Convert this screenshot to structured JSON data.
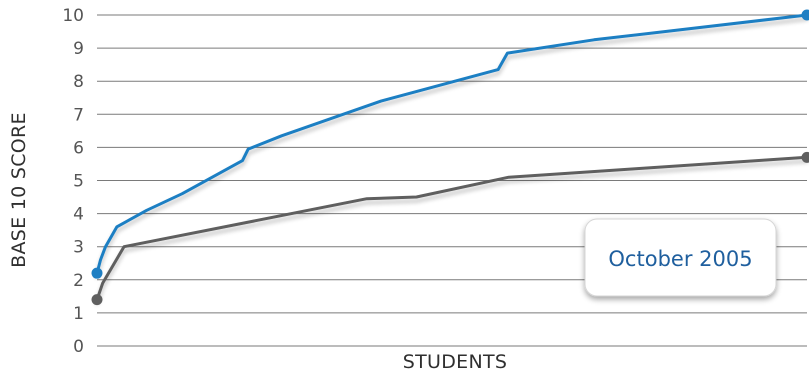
{
  "chart_data": {
    "type": "line",
    "title": "",
    "xlabel": "STUDENTS",
    "ylabel": "BASE 10 SCORE",
    "xlim": [
      0,
      100
    ],
    "ylim": [
      0,
      10
    ],
    "yticks": [
      0,
      1,
      2,
      3,
      4,
      5,
      6,
      7,
      8,
      9,
      10
    ],
    "grid": true,
    "badge": "October 2005",
    "series": [
      {
        "color": "#1f7fc3",
        "points": [
          {
            "x": 0,
            "y": 2.2
          },
          {
            "x": 0.5,
            "y": 2.6
          },
          {
            "x": 1.2,
            "y": 3.0
          },
          {
            "x": 2.8,
            "y": 3.6
          },
          {
            "x": 7,
            "y": 4.1
          },
          {
            "x": 12,
            "y": 4.6
          },
          {
            "x": 20.5,
            "y": 5.6
          },
          {
            "x": 21.3,
            "y": 5.95
          },
          {
            "x": 26,
            "y": 6.35
          },
          {
            "x": 40,
            "y": 7.4
          },
          {
            "x": 56.5,
            "y": 8.35
          },
          {
            "x": 57.8,
            "y": 8.85
          },
          {
            "x": 70,
            "y": 9.25
          },
          {
            "x": 100,
            "y": 10.0
          }
        ]
      },
      {
        "color": "#5f5f5f",
        "points": [
          {
            "x": 0,
            "y": 1.4
          },
          {
            "x": 0.8,
            "y": 1.9
          },
          {
            "x": 3.8,
            "y": 3.0
          },
          {
            "x": 38,
            "y": 4.45
          },
          {
            "x": 45,
            "y": 4.5
          },
          {
            "x": 58,
            "y": 5.1
          },
          {
            "x": 100,
            "y": 5.7
          }
        ]
      }
    ]
  }
}
